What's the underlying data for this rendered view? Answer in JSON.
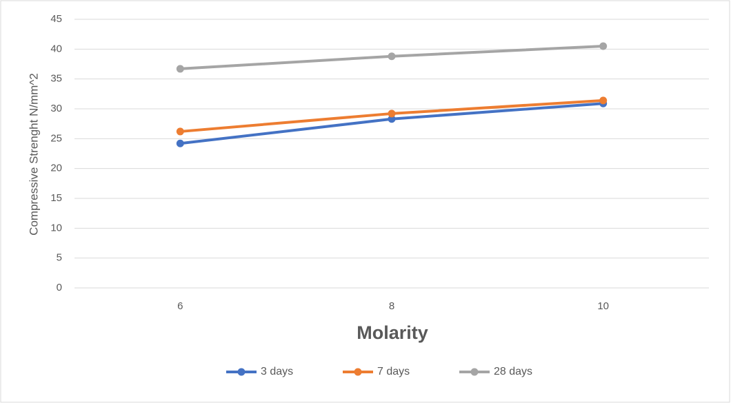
{
  "chart_data": {
    "type": "line",
    "x_label": "Molarity",
    "y_label": "Compressive Strenght N/mm^2",
    "categories": [
      "6",
      "8",
      "10"
    ],
    "series": [
      {
        "name": "3 days",
        "color": "#4472c4",
        "values": [
          24.2,
          28.3,
          30.9
        ]
      },
      {
        "name": "7 days",
        "color": "#ed7d31",
        "values": [
          26.2,
          29.2,
          31.4
        ]
      },
      {
        "name": "28 days",
        "color": "#a5a5a5",
        "values": [
          36.7,
          38.8,
          40.5
        ]
      }
    ],
    "ylim": [
      0,
      45
    ],
    "yticks": [
      0,
      5,
      10,
      15,
      20,
      25,
      30,
      35,
      40,
      45
    ],
    "grid": true,
    "legend": "bottom"
  }
}
